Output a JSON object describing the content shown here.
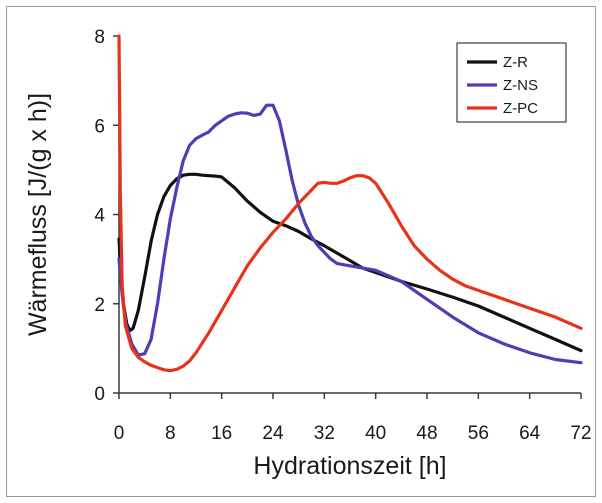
{
  "chart_data": {
    "type": "line",
    "xlabel": "Hydrationszeit [h]",
    "ylabel": "Wärmefluss [J/(g x h)]",
    "xlim": [
      0,
      72
    ],
    "ylim": [
      0,
      8
    ],
    "xticks": [
      0,
      8,
      16,
      24,
      32,
      40,
      48,
      56,
      64,
      72
    ],
    "yticks": [
      0,
      2,
      4,
      6,
      8
    ],
    "grid": false,
    "legend_position": "top-right",
    "series": [
      {
        "name": "Z-R",
        "color": "#111111",
        "x": [
          0,
          0.3,
          0.7,
          1.2,
          1.7,
          2.2,
          3,
          4,
          5,
          6,
          7,
          8,
          9,
          10,
          11,
          12,
          13,
          14,
          15,
          16,
          18,
          20,
          22,
          24,
          26,
          28,
          30,
          32,
          35,
          38,
          40,
          44,
          48,
          52,
          56,
          60,
          64,
          68,
          72
        ],
        "y": [
          3.45,
          2.7,
          2.0,
          1.55,
          1.4,
          1.45,
          1.85,
          2.6,
          3.4,
          4.0,
          4.4,
          4.65,
          4.8,
          4.88,
          4.9,
          4.9,
          4.88,
          4.87,
          4.86,
          4.84,
          4.6,
          4.3,
          4.05,
          3.85,
          3.75,
          3.62,
          3.45,
          3.3,
          3.05,
          2.8,
          2.7,
          2.5,
          2.33,
          2.15,
          1.95,
          1.7,
          1.45,
          1.2,
          0.95
        ]
      },
      {
        "name": "Z-NS",
        "color": "#4b3fb5",
        "x": [
          0,
          0.5,
          1,
          2,
          3,
          4,
          5,
          6,
          7,
          8,
          9,
          10,
          11,
          12,
          13,
          14,
          15,
          16,
          17,
          18,
          19,
          20,
          21,
          22,
          23,
          24,
          25,
          26,
          27,
          28,
          29,
          30,
          31,
          32,
          33,
          34,
          36,
          38,
          40,
          44,
          48,
          52,
          56,
          60,
          64,
          68,
          72
        ],
        "y": [
          3.0,
          2.2,
          1.6,
          1.1,
          0.85,
          0.88,
          1.2,
          2.0,
          3.0,
          3.9,
          4.6,
          5.2,
          5.55,
          5.7,
          5.78,
          5.85,
          6.0,
          6.1,
          6.2,
          6.25,
          6.28,
          6.27,
          6.22,
          6.25,
          6.45,
          6.45,
          6.1,
          5.45,
          4.75,
          4.2,
          3.8,
          3.5,
          3.3,
          3.15,
          3.0,
          2.9,
          2.85,
          2.8,
          2.75,
          2.5,
          2.1,
          1.7,
          1.35,
          1.1,
          0.9,
          0.75,
          0.68
        ]
      },
      {
        "name": "Z-PC",
        "color": "#e8321c",
        "x": [
          0,
          0.2,
          0.5,
          1,
          2,
          3,
          4,
          5,
          6,
          7,
          8,
          9,
          10,
          11,
          12,
          14,
          16,
          18,
          20,
          22,
          24,
          26,
          28,
          30,
          31,
          32,
          33,
          34,
          35,
          36,
          37,
          38,
          39,
          40,
          42,
          44,
          46,
          48,
          50,
          52,
          54,
          56,
          60,
          64,
          68,
          72
        ],
        "y": [
          8.0,
          4.5,
          2.4,
          1.5,
          1.0,
          0.8,
          0.7,
          0.62,
          0.57,
          0.52,
          0.5,
          0.53,
          0.6,
          0.72,
          0.9,
          1.35,
          1.85,
          2.35,
          2.85,
          3.25,
          3.6,
          3.9,
          4.25,
          4.55,
          4.7,
          4.72,
          4.7,
          4.7,
          4.75,
          4.82,
          4.87,
          4.87,
          4.82,
          4.7,
          4.25,
          3.75,
          3.3,
          3.0,
          2.75,
          2.55,
          2.4,
          2.3,
          2.1,
          1.9,
          1.7,
          1.45
        ]
      }
    ]
  }
}
